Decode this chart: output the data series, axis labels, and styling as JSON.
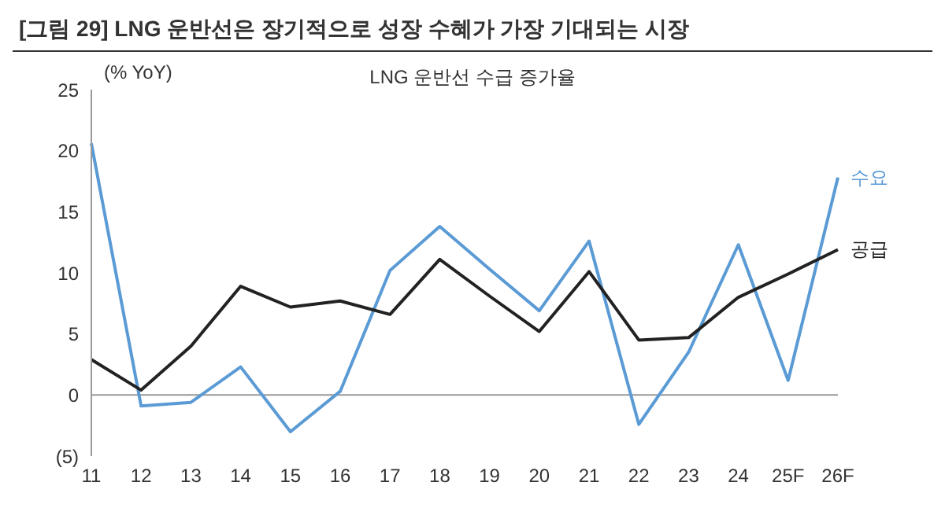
{
  "chart_data": {
    "type": "line",
    "title": "[그림 29] LNG 운반선은 장기적으로 성장 수혜가 가장 기대되는 시장",
    "subtitle": "LNG 운반선 수급 증가율",
    "ylabel": "(% YoY)",
    "categories": [
      "11",
      "12",
      "13",
      "14",
      "15",
      "16",
      "17",
      "18",
      "19",
      "20",
      "21",
      "22",
      "23",
      "24",
      "25F",
      "26F"
    ],
    "series": [
      {
        "name": "수요",
        "color": "#5b9bd5",
        "values": [
          20.6,
          -0.9,
          -0.6,
          2.3,
          -3,
          0.3,
          10.2,
          13.8,
          10.3,
          6.9,
          12.6,
          -2.4,
          3.5,
          12.3,
          1.2,
          17.8
        ]
      },
      {
        "name": "공급",
        "color": "#222222",
        "values": [
          2.9,
          0.4,
          4.0,
          8.9,
          7.2,
          7.7,
          6.6,
          11.1,
          8.1,
          5.2,
          10.1,
          4.5,
          4.7,
          8.0,
          9.9,
          11.9
        ]
      }
    ],
    "ylim": [
      -5,
      25
    ],
    "yticks": [
      {
        "value": -5,
        "label": "(5)"
      },
      0,
      5,
      10,
      15,
      20,
      25
    ],
    "ref_lines": [
      {
        "axis": "y",
        "value": 0,
        "color": "#999999"
      }
    ],
    "grid": false,
    "legend": false,
    "marker": "none",
    "line_style": "solid"
  }
}
